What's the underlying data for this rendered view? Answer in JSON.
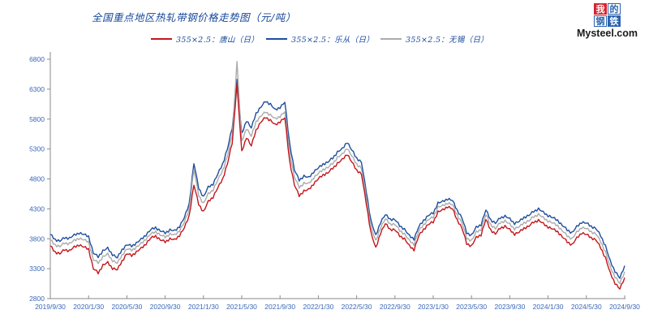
{
  "header": {
    "title": "全国重点地区热轧带钢价格走势图（元/吨）",
    "logo": {
      "chars": [
        "我",
        "的",
        "钢",
        "铁"
      ],
      "site": "Mysteel.com",
      "red": "#cf2630",
      "blue": "#2a63ae"
    }
  },
  "colors": {
    "title_text": "#15479b",
    "axis_text": "#3a68b8",
    "axis_line": "#8a8a8a"
  },
  "chart_data": {
    "type": "line",
    "title": "全国重点地区热轧带钢价格走势图（元/吨）",
    "xlabel": "",
    "ylabel": "",
    "ylim": [
      2800,
      6800
    ],
    "y_ticks": [
      2800,
      3300,
      3800,
      4300,
      4800,
      5300,
      5800,
      6300,
      6800
    ],
    "x_tick_labels": [
      "2019/9/30",
      "2020/1/30",
      "2020/5/30",
      "2020/9/30",
      "2021/1/30",
      "2021/5/30",
      "2021/9/30",
      "2022/1/30",
      "2022/5/30",
      "2022/9/30",
      "2023/1/30",
      "2023/5/30",
      "2023/9/30",
      "2024/1/30",
      "2024/5/30",
      "2024/9/30"
    ],
    "x_resolution": "half-month samples (2 per month) from 2019/9/30 to 2024/9/30",
    "grid": false,
    "legend_position": "top",
    "series": [
      {
        "id": "tangshan",
        "name": "355×2.5：唐山（日）",
        "color": "#c3161c",
        "values": [
          3680,
          3580,
          3550,
          3620,
          3600,
          3660,
          3700,
          3660,
          3630,
          3300,
          3230,
          3360,
          3400,
          3310,
          3280,
          3430,
          3550,
          3520,
          3580,
          3640,
          3720,
          3810,
          3850,
          3780,
          3750,
          3800,
          3780,
          3860,
          3980,
          4180,
          4700,
          4380,
          4250,
          4420,
          4500,
          4650,
          4800,
          5050,
          5400,
          6380,
          5250,
          5500,
          5350,
          5620,
          5750,
          5830,
          5780,
          5700,
          5760,
          5820,
          5100,
          4700,
          4520,
          4600,
          4620,
          4720,
          4800,
          4870,
          4900,
          4980,
          5060,
          5120,
          5220,
          5080,
          4950,
          4880,
          4400,
          3900,
          3640,
          3900,
          4050,
          3960,
          3950,
          3850,
          3800,
          3680,
          3620,
          3850,
          3960,
          4040,
          4080,
          4250,
          4280,
          4340,
          4300,
          4120,
          3980,
          3720,
          3680,
          3820,
          3870,
          4120,
          3950,
          3880,
          3980,
          4010,
          3950,
          3880,
          3910,
          3980,
          4010,
          4080,
          4110,
          4050,
          4000,
          3960,
          3920,
          3830,
          3750,
          3700,
          3810,
          3900,
          3870,
          3820,
          3780,
          3650,
          3480,
          3220,
          3060,
          2960,
          3150
        ]
      },
      {
        "id": "lecong",
        "name": "355×2.5：乐从（日）",
        "color": "#1e4e9d",
        "values": [
          3870,
          3790,
          3760,
          3820,
          3810,
          3860,
          3900,
          3870,
          3840,
          3560,
          3500,
          3600,
          3640,
          3540,
          3480,
          3620,
          3700,
          3680,
          3730,
          3790,
          3870,
          3950,
          3990,
          3930,
          3900,
          3950,
          3930,
          4010,
          4150,
          4380,
          5060,
          4650,
          4500,
          4660,
          4720,
          4880,
          5050,
          5300,
          5650,
          6450,
          5550,
          5780,
          5650,
          5900,
          6000,
          6100,
          6050,
          5950,
          6000,
          6080,
          5400,
          4950,
          4780,
          4850,
          4820,
          4920,
          4980,
          5050,
          5080,
          5150,
          5250,
          5300,
          5420,
          5280,
          5150,
          5080,
          4600,
          4100,
          3850,
          4080,
          4200,
          4130,
          4120,
          4020,
          3960,
          3850,
          3800,
          4000,
          4110,
          4190,
          4230,
          4400,
          4420,
          4470,
          4440,
          4280,
          4150,
          3900,
          3860,
          3990,
          4040,
          4280,
          4120,
          4060,
          4150,
          4180,
          4130,
          4060,
          4090,
          4160,
          4190,
          4260,
          4300,
          4240,
          4190,
          4150,
          4110,
          4020,
          3950,
          3900,
          4000,
          4080,
          4060,
          4010,
          3970,
          3850,
          3680,
          3420,
          3260,
          3140,
          3350
        ]
      },
      {
        "id": "wuxi",
        "name": "355×2.5：无锡（日）",
        "color": "#ababab",
        "values": [
          3780,
          3700,
          3670,
          3730,
          3720,
          3770,
          3810,
          3780,
          3750,
          3450,
          3400,
          3500,
          3540,
          3440,
          3390,
          3530,
          3630,
          3610,
          3660,
          3720,
          3800,
          3880,
          3920,
          3860,
          3830,
          3880,
          3860,
          3940,
          4070,
          4290,
          4960,
          4530,
          4390,
          4550,
          4620,
          4780,
          4940,
          5180,
          5530,
          6750,
          5420,
          5650,
          5510,
          5760,
          5850,
          5920,
          5870,
          5800,
          5850,
          5920,
          5260,
          4830,
          4660,
          4730,
          4720,
          4820,
          4890,
          4960,
          4990,
          5060,
          5160,
          5210,
          5320,
          5180,
          5050,
          4980,
          4500,
          4000,
          3760,
          3990,
          4130,
          4050,
          4040,
          3940,
          3880,
          3770,
          3710,
          3930,
          4040,
          4120,
          4160,
          4330,
          4350,
          4400,
          4370,
          4200,
          4070,
          3810,
          3770,
          3910,
          3960,
          4200,
          4040,
          3970,
          4070,
          4100,
          4040,
          3970,
          4000,
          4070,
          4100,
          4170,
          4210,
          4150,
          4100,
          4060,
          4020,
          3930,
          3850,
          3800,
          3910,
          3990,
          3970,
          3920,
          3880,
          3750,
          3580,
          3320,
          3170,
          3050,
          3250
        ]
      }
    ]
  }
}
